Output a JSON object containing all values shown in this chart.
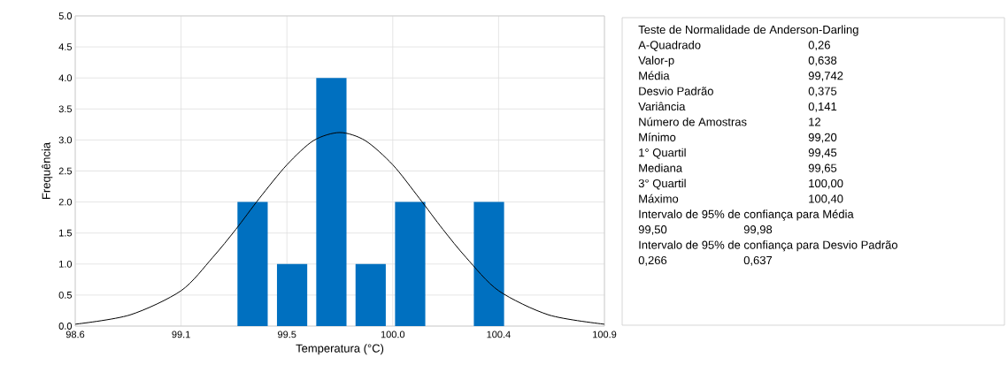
{
  "chart_data": {
    "type": "bar",
    "xlabel": "Temperatura (°C)",
    "ylabel": "Frequência",
    "xlim": [
      98.617,
      100.867
    ],
    "xticks": [
      {
        "value": 98.617,
        "label": "98.6"
      },
      {
        "value": 99.067,
        "label": "99.1"
      },
      {
        "value": 99.517,
        "label": "99.5"
      },
      {
        "value": 99.967,
        "label": "100.0"
      },
      {
        "value": 100.417,
        "label": "100.4"
      },
      {
        "value": 100.867,
        "label": "100.9"
      }
    ],
    "ylim": [
      0,
      5
    ],
    "yticks": [
      {
        "value": 0,
        "label": "0.0"
      },
      {
        "value": 0.5,
        "label": "0.5"
      },
      {
        "value": 1,
        "label": "1.0"
      },
      {
        "value": 1.5,
        "label": "1.5"
      },
      {
        "value": 2,
        "label": "2.0"
      },
      {
        "value": 2.5,
        "label": "2.5"
      },
      {
        "value": 3,
        "label": "3.0"
      },
      {
        "value": 3.5,
        "label": "3.5"
      },
      {
        "value": 4,
        "label": "4.0"
      },
      {
        "value": 4.5,
        "label": "4.5"
      },
      {
        "value": 5,
        "label": "5.0"
      }
    ],
    "grid": true,
    "series": [
      {
        "color": "#0070c0",
        "x": [
          99.371,
          99.539,
          99.706,
          99.873,
          100.041,
          100.376
        ],
        "values": [
          2,
          1,
          4,
          1,
          2,
          2
        ]
      },
      {
        "type": "line",
        "color": "#000000",
        "x": [
          98.617,
          98.85,
          99.067,
          99.2,
          99.3,
          99.4,
          99.517,
          99.63,
          99.742,
          99.85,
          99.967,
          100.08,
          100.18,
          100.28,
          100.417,
          100.63,
          100.867
        ],
        "values": [
          0.03,
          0.18,
          0.57,
          1.1,
          1.56,
          2.06,
          2.6,
          2.99,
          3.12,
          2.99,
          2.6,
          2.06,
          1.56,
          1.1,
          0.57,
          0.18,
          0.03
        ]
      }
    ],
    "annotations": [
      "Teste de Normalidade de Anderson-Darling",
      "A-Quadrado",
      "0,26",
      "Valor-p",
      "0,638",
      "Média",
      "99,742",
      "Desvio Padrão",
      "0,375",
      "Variância",
      "0,141",
      "Número de Amostras",
      "12",
      "Mínimo",
      "99,20",
      "1° Quartil",
      "99,45",
      "Mediana",
      "99,65",
      "3° Quartil",
      "100,00",
      "Máximo",
      "100,40",
      "Intervalo de 95% de confiança para Média",
      "99,50",
      "99,98",
      "Intervalo de 95% de confiança para Desvio Padrão",
      "0,266",
      "0,637"
    ]
  }
}
